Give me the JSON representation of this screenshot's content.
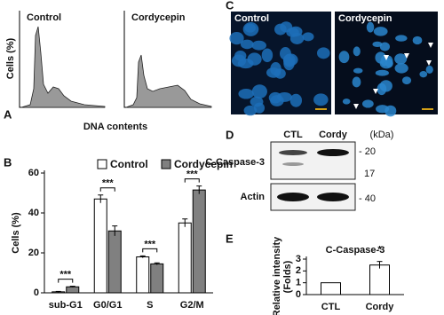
{
  "panel_labels": [
    "A",
    "B",
    "C",
    "D",
    "E"
  ],
  "flow": {
    "samples": [
      "Control",
      "Cordycepin"
    ],
    "y_label": "Cells (%)",
    "x_label": "DNA contents"
  },
  "microscopy": {
    "samples": [
      "Control",
      "Cordycepin"
    ]
  },
  "blot": {
    "lanes": [
      "CTL",
      "Cordy"
    ],
    "unit": "(kDa)",
    "bands": [
      "C-Caspase-3",
      "Actin"
    ],
    "markers": [
      "- 20",
      "17",
      "- 40"
    ]
  },
  "chart_data": [
    {
      "type": "bar",
      "categories": [
        "sub-G1",
        "G0/G1",
        "S",
        "G2/M"
      ],
      "y_label": [
        "Cells (%)"
      ],
      "series": [
        {
          "name": "Control",
          "color": "#ffffff",
          "values": [
            0.5,
            47,
            18,
            35
          ],
          "errors": [
            0.2,
            2,
            0.5,
            2
          ]
        },
        {
          "name": "Cordycepin",
          "color": "#808080",
          "values": [
            3,
            31,
            14.5,
            51.5
          ],
          "errors": [
            0.3,
            2.5,
            0.5,
            2
          ]
        }
      ],
      "annotations": [
        "***",
        "***",
        "***",
        "***"
      ],
      "ylim": [
        0,
        60
      ],
      "yticks": [
        0,
        20,
        40,
        60
      ]
    },
    {
      "type": "bar",
      "title": "C-Caspase-3",
      "categories": [
        "CTL",
        "Cordy"
      ],
      "y_label": [
        "Relative intensity",
        "(Folds)"
      ],
      "color": "#ffffff",
      "values": [
        1,
        2.5
      ],
      "errors": [
        null,
        0.3
      ],
      "annotations": [
        null,
        "*"
      ],
      "ylim": [
        0,
        3
      ],
      "yticks": [
        0,
        1,
        2,
        3
      ]
    }
  ]
}
